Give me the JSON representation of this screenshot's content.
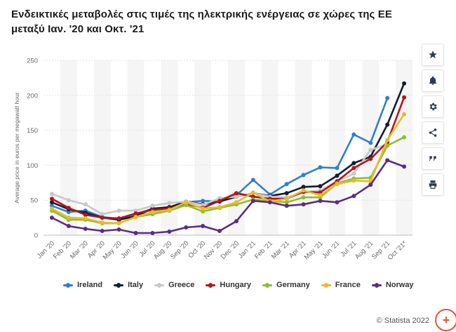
{
  "chart_data": {
    "type": "line",
    "title": "Ενδεικτικές μεταβολές στις τιμές της ηλεκτρικής ενέργειας σε χώρες της ΕΕ μεταξύ Ιαν. '20 και Οκτ. '21",
    "ylabel": "Average price in euros per megawatt hour",
    "xlabel": "",
    "ylim": [
      0,
      250
    ],
    "yticks": [
      "0",
      "50",
      "100",
      "150",
      "200",
      "250"
    ],
    "categories": [
      "Jan '20",
      "Feb '20",
      "Mar '20",
      "Apr '20",
      "May '20",
      "Jun '20",
      "Jul '20",
      "Aug '20",
      "Sep '20",
      "Oct '20",
      "Nov '20",
      "Dec '20",
      "Jan '21",
      "Feb '21",
      "Mar '21",
      "Apr '21",
      "May '21",
      "Jun '21",
      "Jul '21",
      "Aug '21",
      "Sep '21",
      "Oct '21*"
    ],
    "series": [
      {
        "name": "Ireland",
        "color": "#2f7fcf",
        "values": [
          42,
          33,
          35,
          26,
          23,
          30,
          38,
          39,
          47,
          49,
          48,
          57,
          79,
          58,
          73,
          86,
          97,
          96,
          144,
          132,
          196,
          null
        ]
      },
      {
        "name": "Italy",
        "color": "#111f33",
        "values": [
          47,
          37,
          32,
          25,
          22,
          27,
          38,
          40,
          48,
          44,
          48,
          55,
          60,
          56,
          60,
          69,
          70,
          85,
          103,
          112,
          158,
          217
        ]
      },
      {
        "name": "Greece",
        "color": "#c8c8c8",
        "values": [
          59,
          50,
          44,
          30,
          35,
          35,
          42,
          46,
          48,
          43,
          53,
          55,
          60,
          55,
          54,
          61,
          64,
          77,
          88,
          122,
          130,
          null
        ]
      },
      {
        "name": "Hungary",
        "color": "#b4151c",
        "values": [
          52,
          39,
          29,
          25,
          24,
          31,
          36,
          38,
          45,
          39,
          49,
          60,
          55,
          52,
          52,
          62,
          61,
          77,
          96,
          109,
          133,
          197
        ]
      },
      {
        "name": "Germany",
        "color": "#8cbf2e",
        "values": [
          35,
          22,
          22,
          17,
          17,
          26,
          30,
          35,
          43,
          34,
          39,
          44,
          51,
          49,
          47,
          54,
          54,
          74,
          81,
          82,
          128,
          140
        ]
      },
      {
        "name": "France",
        "color": "#e8bb2c",
        "values": [
          38,
          25,
          24,
          18,
          17,
          26,
          33,
          36,
          47,
          38,
          40,
          47,
          61,
          48,
          52,
          64,
          57,
          73,
          78,
          77,
          136,
          173
        ]
      },
      {
        "name": "Norway",
        "color": "#5c2d82",
        "values": [
          25,
          13,
          9,
          6,
          8,
          3,
          3,
          5,
          11,
          13,
          6,
          20,
          49,
          47,
          42,
          44,
          49,
          47,
          56,
          72,
          107,
          98
        ]
      }
    ]
  },
  "sidebar": {
    "items": [
      {
        "icon": "star-icon",
        "label": "favorite"
      },
      {
        "icon": "bell-icon",
        "label": "notification"
      },
      {
        "icon": "gear-icon",
        "label": "settings"
      },
      {
        "icon": "share-icon",
        "label": "share"
      },
      {
        "icon": "quote-icon",
        "label": "cite"
      },
      {
        "icon": "print-icon",
        "label": "print"
      }
    ]
  },
  "footer": {
    "credit": "© Statista 2022"
  }
}
